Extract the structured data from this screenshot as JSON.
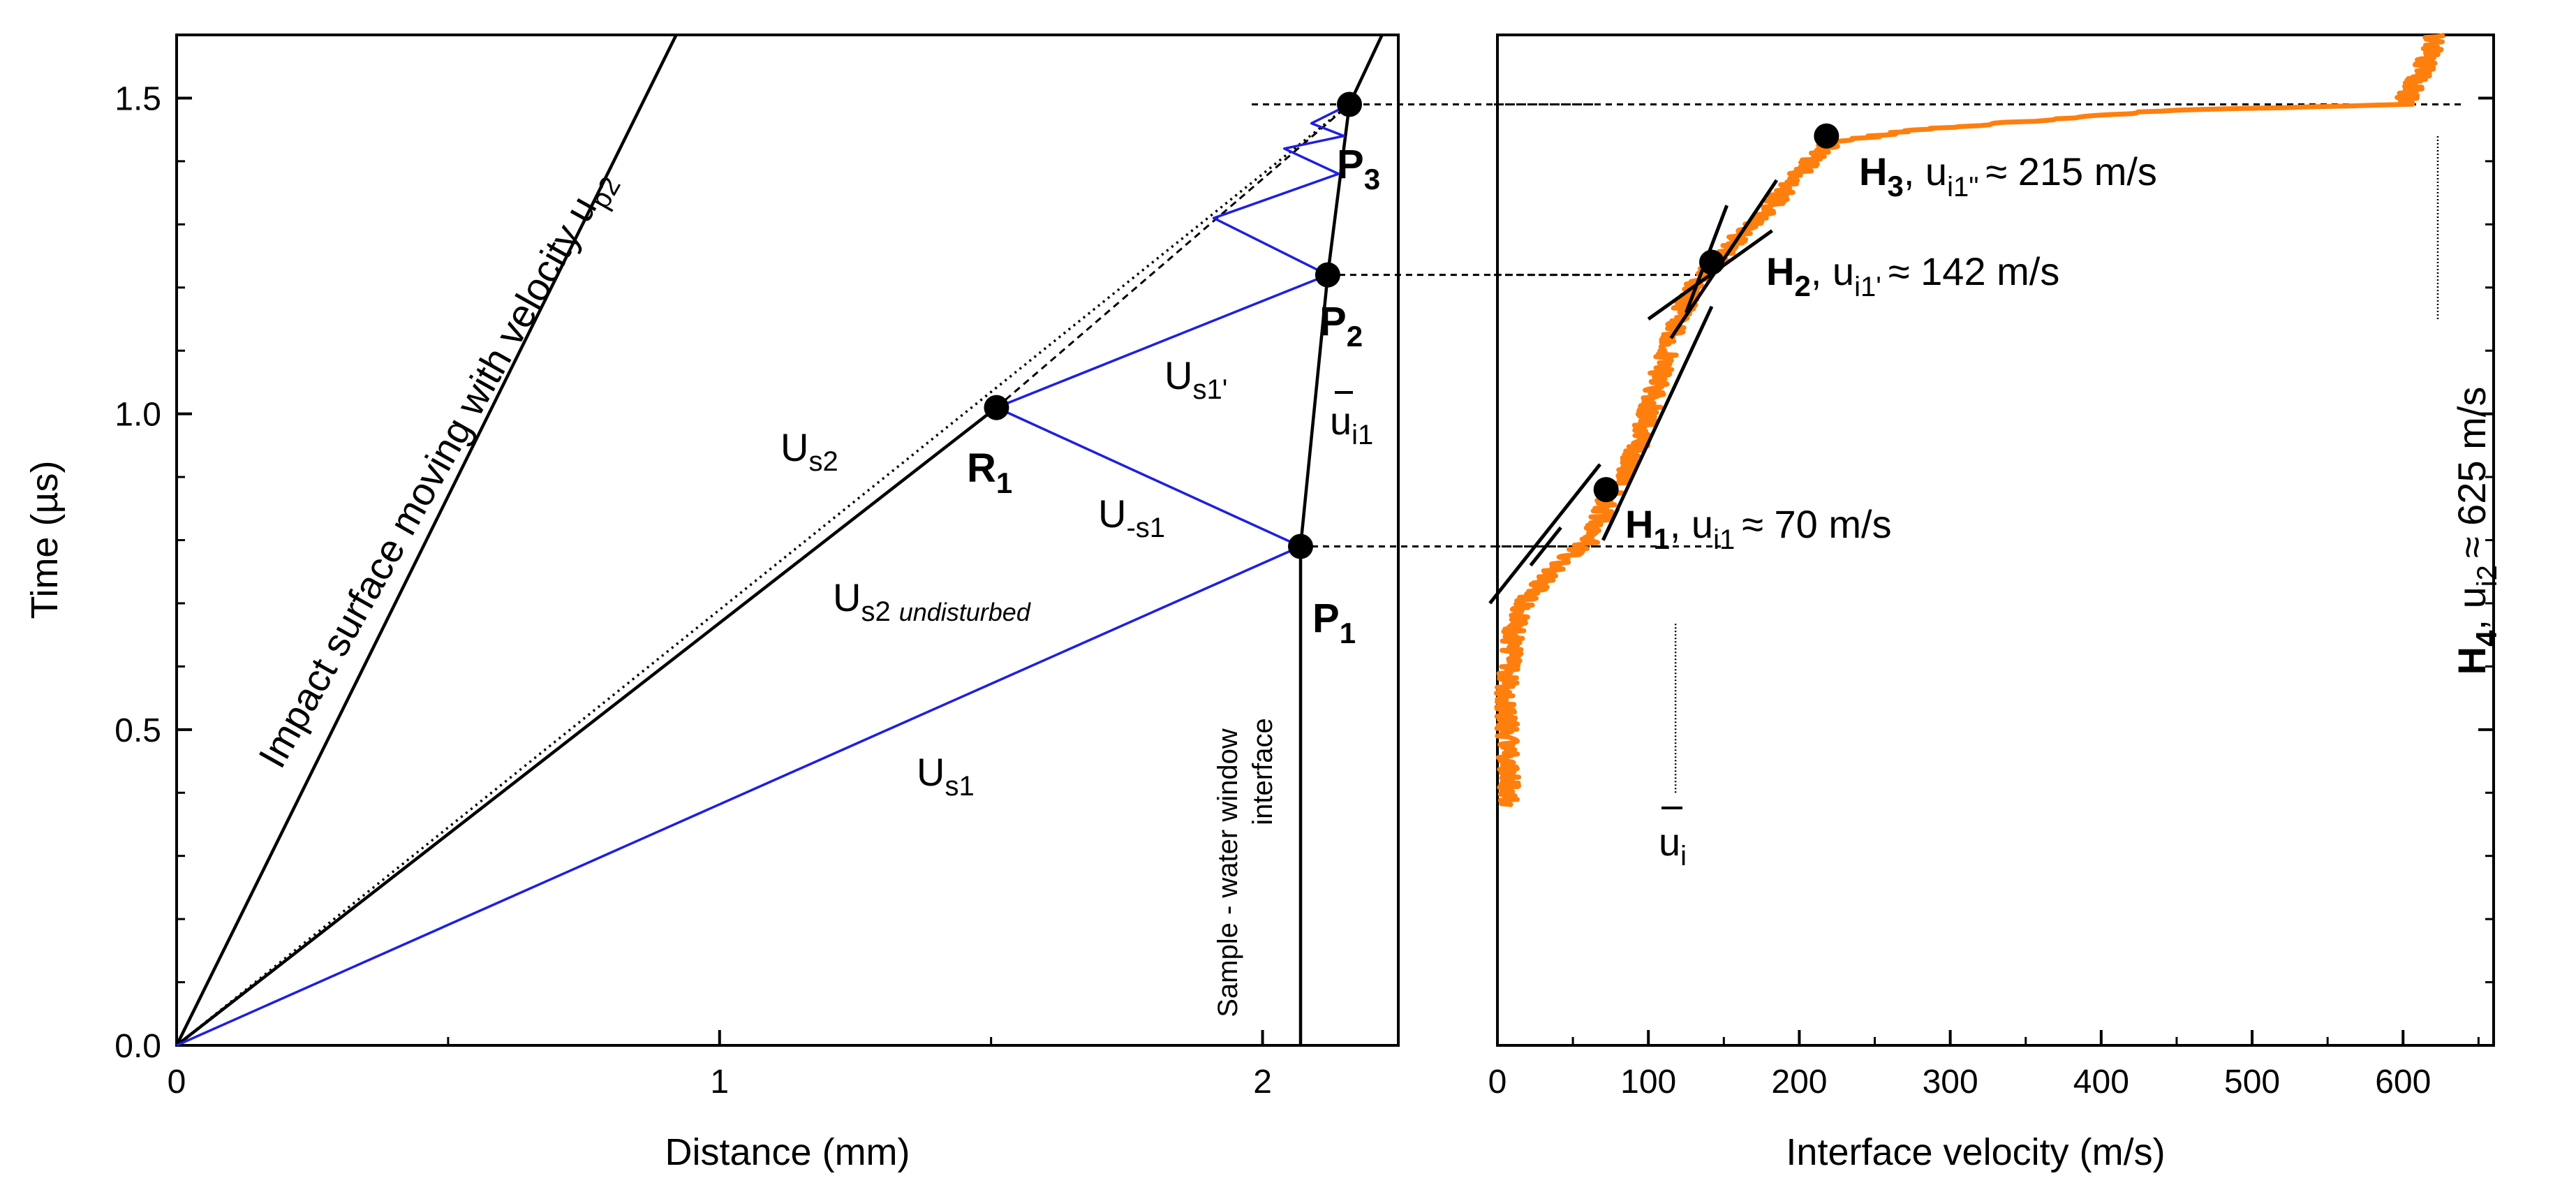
{
  "chart_data": [
    {
      "type": "line",
      "panel": "left",
      "title": "",
      "xlabel": "Distance (mm)",
      "ylabel": "Time (µs)",
      "xlim": [
        0,
        2.25
      ],
      "ylim": [
        0,
        1.6
      ],
      "grid": false,
      "x_ticks": [
        0,
        1,
        2
      ],
      "x_tick_labels": [
        "0",
        "1",
        "2"
      ],
      "y_ticks": [
        0.0,
        0.5,
        1.0,
        1.5
      ],
      "y_tick_labels": [
        "0.0",
        "0.5",
        "1.0",
        "1.5"
      ],
      "points": {
        "P1": {
          "x": 2.07,
          "y": 0.79
        },
        "P2": {
          "x": 2.12,
          "y": 1.22
        },
        "P3": {
          "x": 2.16,
          "y": 1.49
        },
        "R1": {
          "x": 1.51,
          "y": 1.01
        }
      },
      "series": [
        {
          "name": "Impact surface moving with velocity up2",
          "color": "#000000",
          "style": "solid",
          "x": [
            0,
            0.92
          ],
          "y": [
            0,
            1.6
          ]
        },
        {
          "name": "Us2 undisturbed",
          "color": "#000000",
          "style": "solid",
          "x": [
            0,
            1.51
          ],
          "y": [
            0,
            1.01
          ]
        },
        {
          "name": "Us2",
          "color": "#000000",
          "style": "dotted",
          "x": [
            0,
            2.16
          ],
          "y": [
            0,
            1.49
          ]
        },
        {
          "name": "Us2 extrapolated",
          "color": "#000000",
          "style": "dashed",
          "x": [
            1.51,
            2.16
          ],
          "y": [
            1.01,
            1.49
          ]
        },
        {
          "name": "Sample - water window interface",
          "color": "#000000",
          "style": "solid",
          "x": [
            2.07,
            2.07,
            2.12,
            2.16,
            2.22
          ],
          "y": [
            0,
            0.79,
            1.22,
            1.49,
            1.6
          ]
        },
        {
          "name": "Us1",
          "color": "#1f1fe0",
          "style": "solid",
          "x": [
            0,
            2.07
          ],
          "y": [
            0,
            0.79
          ]
        },
        {
          "name": "U-s1",
          "color": "#1f1fe0",
          "style": "solid",
          "x": [
            2.07,
            1.51
          ],
          "y": [
            0.79,
            1.01
          ]
        },
        {
          "name": "Us1'",
          "color": "#1f1fe0",
          "style": "solid",
          "x": [
            1.51,
            2.12
          ],
          "y": [
            1.01,
            1.22
          ]
        },
        {
          "name": "reverberations",
          "color": "#1f1fe0",
          "style": "solid",
          "x": [
            2.12,
            1.91,
            2.14,
            2.04,
            2.15,
            2.09,
            2.16
          ],
          "y": [
            1.22,
            1.31,
            1.38,
            1.42,
            1.44,
            1.46,
            1.49
          ]
        }
      ],
      "guide_lines": [
        {
          "y": 0.79,
          "x_from": 2.07,
          "x_to": 2.6
        },
        {
          "y": 1.22,
          "x_from": 2.12,
          "x_to": 2.6
        },
        {
          "y": 1.49,
          "x_from": 1.98,
          "x_to": 2.6
        }
      ],
      "labels": {
        "impact": "Impact surface moving with velocity u",
        "impact_sub": "p2",
        "us2_main": "U",
        "us2_sub": "s2",
        "us2u_main": "U",
        "us2u_sub": "s2",
        "us2u_note": "undisturbed",
        "us1_main": "U",
        "us1_sub": "s1",
        "usm1_main": "U",
        "usm1_sub": "-s1",
        "us1p_main": "U",
        "us1p_sub": "s1'",
        "ui1_main": "u",
        "ui1_sub": "i1",
        "interface_line1": "Sample - water window",
        "interface_line2": "interface",
        "p1_main": "P",
        "p1_sub": "1",
        "p2_main": "P",
        "p2_sub": "2",
        "p3_main": "P",
        "p3_sub": "3",
        "r1_main": "R",
        "r1_sub": "1"
      }
    },
    {
      "type": "line",
      "panel": "right",
      "title": "",
      "xlabel": "Interface velocity (m/s)",
      "ylabel": "",
      "xlim": [
        0,
        660
      ],
      "ylim": [
        0,
        1.6
      ],
      "grid": false,
      "x_ticks": [
        0,
        100,
        200,
        300,
        400,
        500,
        600
      ],
      "x_tick_labels": [
        "0",
        "100",
        "200",
        "300",
        "400",
        "500",
        "600"
      ],
      "series": [
        {
          "name": "Interface velocity",
          "color": "#ff7f0e",
          "style": "noisy",
          "t": [
            0.38,
            0.45,
            0.55,
            0.65,
            0.7,
            0.75,
            0.78,
            0.8,
            0.83,
            0.86,
            0.88,
            0.92,
            0.96,
            1.0,
            1.04,
            1.08,
            1.12,
            1.16,
            1.2,
            1.24,
            1.28,
            1.32,
            1.36,
            1.4,
            1.43,
            1.45,
            1.48,
            1.49,
            1.51,
            1.54,
            1.57,
            1.6
          ],
          "v": [
            8,
            7,
            6,
            10,
            18,
            35,
            50,
            62,
            68,
            72,
            78,
            88,
            95,
            100,
            105,
            110,
            115,
            122,
            130,
            145,
            160,
            178,
            193,
            207,
            222,
            280,
            440,
            600,
            605,
            612,
            618,
            622
          ]
        }
      ],
      "fit_lines": [
        {
          "v": [
            -5,
            68
          ],
          "t": [
            0.7,
            0.92
          ]
        },
        {
          "v": [
            22,
            42
          ],
          "t": [
            0.76,
            0.82
          ]
        },
        {
          "v": [
            70,
            80
          ],
          "t": [
            0.8,
            0.85
          ]
        },
        {
          "v": [
            70,
            142
          ],
          "t": [
            0.8,
            1.17
          ]
        },
        {
          "v": [
            115,
            185
          ],
          "t": [
            1.12,
            1.37
          ]
        },
        {
          "v": [
            125,
            152
          ],
          "t": [
            1.16,
            1.33
          ]
        },
        {
          "v": [
            100,
            182
          ],
          "t": [
            1.15,
            1.29
          ]
        }
      ],
      "points": {
        "H1": {
          "v": 72,
          "t": 0.88
        },
        "H2": {
          "v": 142,
          "t": 1.24
        },
        "H3": {
          "v": 218,
          "t": 1.44
        }
      },
      "ui_marker": {
        "v": 118,
        "t_from": 0.4,
        "t_to": 0.67
      },
      "h4_marker": {
        "v": 623,
        "t_from": 1.15,
        "t_to": 1.44
      },
      "labels": {
        "h1_main": "H",
        "h1_sub": "1",
        "h1_rest": ", u",
        "h1_rest_sub": "i1",
        "h1_value": "≈ 70 m/s",
        "h2_main": "H",
        "h2_sub": "2",
        "h2_rest": ", u",
        "h2_rest_sub": "i1'",
        "h2_value": "≈ 142 m/s",
        "h3_main": "H",
        "h3_sub": "3",
        "h3_rest": ", u",
        "h3_rest_sub": "i1\"",
        "h3_value": "≈ 215 m/s",
        "h4_main": "H",
        "h4_sub": "4",
        "h4_rest": ", u",
        "h4_rest_sub": "i2",
        "h4_value": "≈ 625 m/s",
        "ui_main": "u",
        "ui_sub": "i"
      }
    }
  ]
}
